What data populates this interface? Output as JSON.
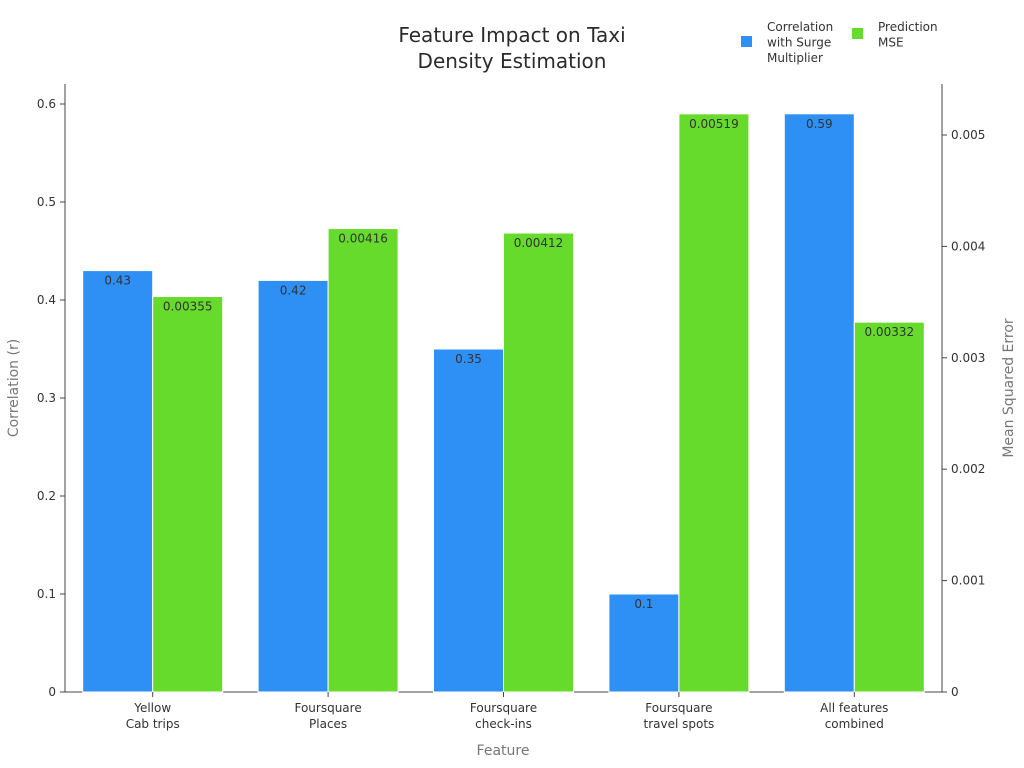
{
  "chart_data": {
    "type": "bar",
    "title": "Feature Impact on Taxi Density Estimation",
    "title_lines": [
      "Feature Impact on Taxi",
      "Density Estimation"
    ],
    "xlabel": "Feature",
    "ylabel_left": "Correlation (r)",
    "ylabel_right": "Mean Squared Error",
    "categories": [
      [
        "Yellow",
        "Cab trips"
      ],
      [
        "Foursquare",
        "Places"
      ],
      [
        "Foursquare",
        "check-ins"
      ],
      [
        "Foursquare",
        "travel spots"
      ],
      [
        "All features",
        "combined"
      ]
    ],
    "series": [
      {
        "name": "Correlation with Surge Multiplier",
        "legend_lines": [
          "Correlation",
          "with Surge",
          "Multiplier"
        ],
        "axis": "left",
        "color": "#2e8ff5",
        "values": [
          0.43,
          0.42,
          0.35,
          0.1,
          0.59
        ],
        "labels": [
          "0.43",
          "0.42",
          "0.35",
          "0.1",
          "0.59"
        ]
      },
      {
        "name": "Prediction MSE",
        "legend_lines": [
          "Prediction",
          "MSE"
        ],
        "axis": "right",
        "color": "#66db2b",
        "values": [
          0.00355,
          0.00416,
          0.00412,
          0.00519,
          0.00332
        ],
        "labels": [
          "0.00355",
          "0.00416",
          "0.00412",
          "0.00519",
          "0.00332"
        ]
      }
    ],
    "ylim_left": [
      0,
      0.6
    ],
    "yticks_left": [
      "0",
      "0.1",
      "0.2",
      "0.3",
      "0.4",
      "0.5",
      "0.6"
    ],
    "ylim_right": [
      0,
      0.0055
    ],
    "yticks_right": [
      "0",
      "0.001",
      "0.002",
      "0.003",
      "0.004",
      "0.005"
    ],
    "grid": false,
    "legend_position": "top-right"
  }
}
